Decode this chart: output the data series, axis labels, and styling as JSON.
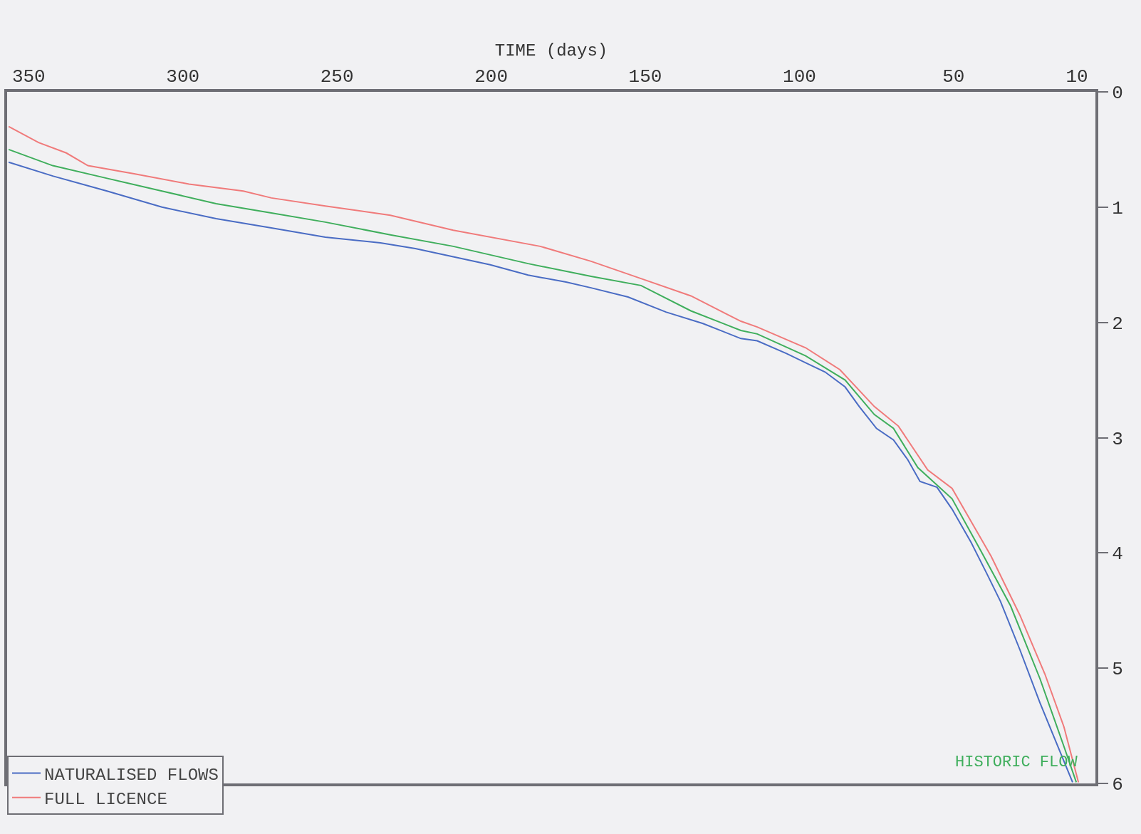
{
  "chart_data": {
    "type": "line",
    "xlabel": "TIME (days)",
    "xlim": [
      357,
      4
    ],
    "xticks": [
      10,
      50,
      100,
      150,
      200,
      250,
      300,
      350
    ],
    "ylim": [
      6,
      0
    ],
    "yticks": [
      0,
      1,
      2,
      3,
      4,
      5,
      6
    ],
    "grid": false,
    "legend": "bottom left",
    "line_style": "solid",
    "marker": "none",
    "series": [
      {
        "name": "NATURALISED FLOWS",
        "color": "#4a6cc4",
        "x": [
          11.4,
          22.0,
          28.5,
          34.8,
          39.4,
          44.3,
          50.5,
          55.4,
          60.9,
          64.9,
          69.5,
          75.0,
          80.6,
          85.2,
          91.7,
          98.0,
          104.2,
          113.7,
          119.0,
          131.3,
          143.3,
          155.6,
          167.6,
          175.7,
          188.0,
          200.3,
          212.3,
          224.6,
          235.9,
          253.8,
          271.3,
          289.2,
          306.8,
          324.6,
          342.2,
          356.5
        ],
        "values": [
          5.99,
          5.3,
          4.84,
          4.42,
          4.17,
          3.91,
          3.62,
          3.43,
          3.38,
          3.19,
          3.02,
          2.92,
          2.73,
          2.56,
          2.43,
          2.35,
          2.27,
          2.16,
          2.14,
          2.01,
          1.91,
          1.78,
          1.7,
          1.65,
          1.59,
          1.5,
          1.43,
          1.36,
          1.31,
          1.26,
          1.18,
          1.1,
          1.0,
          0.86,
          0.73,
          0.61
        ]
      },
      {
        "name": "HISTORIC FLOW",
        "color": "#3fae5c",
        "x": [
          10.2,
          14.2,
          22.0,
          31.5,
          41.0,
          50.5,
          61.6,
          69.5,
          75.7,
          85.2,
          98.0,
          113.7,
          119.0,
          135.2,
          151.4,
          167.6,
          188.0,
          212.3,
          232.7,
          253.8,
          271.3,
          289.2,
          306.8,
          324.6,
          342.2,
          356.5
        ],
        "values": [
          5.99,
          5.68,
          5.09,
          4.46,
          3.99,
          3.53,
          3.26,
          2.92,
          2.8,
          2.5,
          2.29,
          2.1,
          2.07,
          1.9,
          1.68,
          1.6,
          1.49,
          1.34,
          1.24,
          1.13,
          1.05,
          0.97,
          0.86,
          0.75,
          0.64,
          0.5
        ]
      },
      {
        "name": "FULL LICENCE",
        "color": "#f07a7a",
        "x": [
          9.5,
          14.2,
          20.4,
          28.5,
          37.8,
          50.5,
          58.4,
          67.9,
          75.7,
          86.9,
          98.0,
          113.7,
          119.0,
          135.2,
          151.4,
          167.6,
          184.1,
          212.3,
          232.7,
          253.8,
          271.3,
          280.4,
          298.0,
          315.8,
          330.8,
          337.8,
          346.8,
          356.5
        ],
        "values": [
          5.99,
          5.51,
          5.05,
          4.54,
          4.03,
          3.44,
          3.28,
          2.9,
          2.73,
          2.41,
          2.22,
          2.04,
          1.99,
          1.77,
          1.62,
          1.47,
          1.34,
          1.2,
          1.07,
          0.99,
          0.92,
          0.86,
          0.8,
          0.71,
          0.64,
          0.53,
          0.44,
          0.3
        ]
      }
    ]
  }
}
